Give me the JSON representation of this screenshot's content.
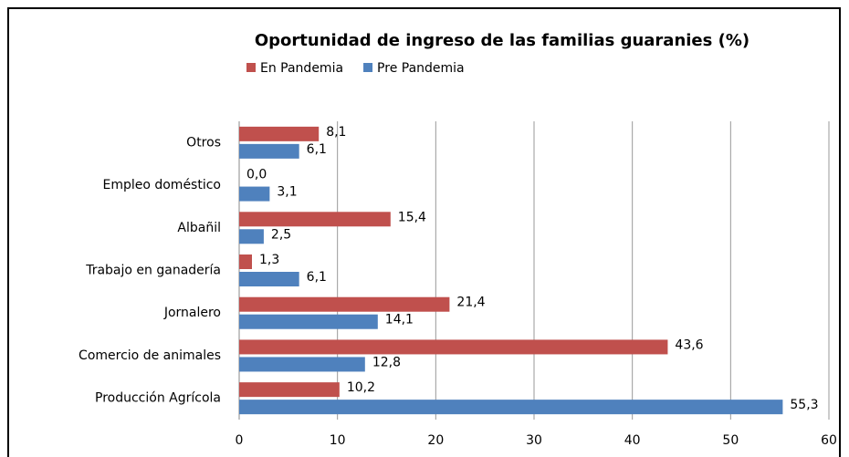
{
  "chart_data": {
    "type": "hbar",
    "title": "Oportunidad de ingreso de las familias guaranies (%)",
    "categories": [
      "Otros",
      "Empleo doméstico",
      "Albañil",
      "Trabajo en ganadería",
      "Jornalero",
      "Comercio de animales",
      "Producción Agrícola"
    ],
    "series": [
      {
        "name": "En Pandemia",
        "color": "#c0504d",
        "values": [
          8.1,
          0.0,
          15.4,
          1.3,
          21.4,
          43.6,
          10.2
        ],
        "value_labels": [
          "8,1",
          "0,0",
          "15,4",
          "1,3",
          "21,4",
          "43,6",
          "10,2"
        ]
      },
      {
        "name": "Pre Pandemia",
        "color": "#4f81bd",
        "values": [
          6.1,
          3.1,
          2.5,
          6.1,
          14.1,
          12.8,
          55.3
        ],
        "value_labels": [
          "6,1",
          "3,1",
          "2,5",
          "6,1",
          "14,1",
          "12,8",
          "55,3"
        ]
      }
    ],
    "xlim": [
      0,
      60
    ],
    "xticks": [
      0,
      10,
      20,
      30,
      40,
      50,
      60
    ],
    "grid": true,
    "legend": "top"
  }
}
